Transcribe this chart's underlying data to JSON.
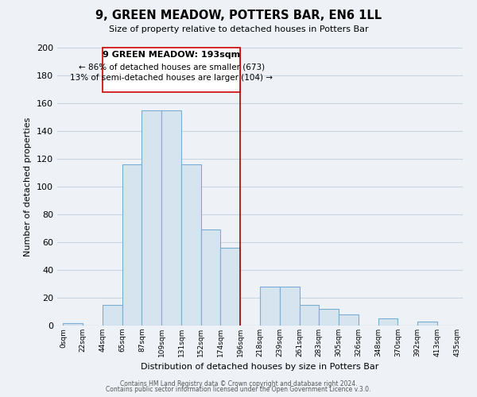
{
  "title": "9, GREEN MEADOW, POTTERS BAR, EN6 1LL",
  "subtitle": "Size of property relative to detached houses in Potters Bar",
  "xlabel": "Distribution of detached houses by size in Potters Bar",
  "ylabel": "Number of detached properties",
  "bar_color": "#d6e4f0",
  "bar_edge_color": "#7aadd4",
  "background_color": "#eef2f7",
  "grid_color": "#c8d4e0",
  "annotation_box_color": "#ffffff",
  "annotation_box_edge": "#cc0000",
  "vline_color": "#aa0000",
  "tick_labels": [
    "0sqm",
    "22sqm",
    "44sqm",
    "65sqm",
    "87sqm",
    "109sqm",
    "131sqm",
    "152sqm",
    "174sqm",
    "196sqm",
    "218sqm",
    "239sqm",
    "261sqm",
    "283sqm",
    "305sqm",
    "326sqm",
    "348sqm",
    "370sqm",
    "392sqm",
    "413sqm",
    "435sqm"
  ],
  "bar_values": [
    2,
    0,
    15,
    116,
    155,
    155,
    116,
    69,
    56,
    0,
    28,
    28,
    15,
    12,
    8,
    0,
    5,
    0,
    3,
    0
  ],
  "property_line_x": 9,
  "annotation_title": "9 GREEN MEADOW: 193sqm",
  "annotation_line1": "← 86% of detached houses are smaller (673)",
  "annotation_line2": "13% of semi-detached houses are larger (104) →",
  "ylim": [
    0,
    200
  ],
  "yticks": [
    0,
    20,
    40,
    60,
    80,
    100,
    120,
    140,
    160,
    180,
    200
  ],
  "footer1": "Contains HM Land Registry data © Crown copyright and database right 2024.",
  "footer2": "Contains public sector information licensed under the Open Government Licence v.3.0."
}
